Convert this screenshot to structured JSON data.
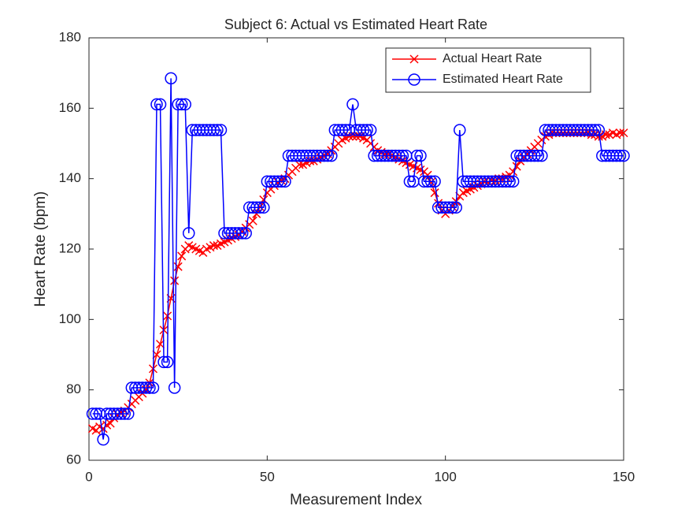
{
  "chart_data": {
    "type": "line",
    "title": "Subject 6: Actual vs Estimated Heart Rate",
    "xlabel": "Measurement Index",
    "ylabel": "Heart Rate (bpm)",
    "xlim": [
      0,
      150
    ],
    "xticks": [
      0,
      50,
      100,
      150
    ],
    "ylim": [
      60,
      180
    ],
    "yticks": [
      60,
      80,
      100,
      120,
      140,
      160,
      180
    ],
    "legend": "upper right",
    "x": [
      1,
      2,
      3,
      4,
      5,
      6,
      7,
      8,
      9,
      10,
      11,
      12,
      13,
      14,
      15,
      16,
      17,
      18,
      19,
      20,
      21,
      22,
      23,
      24,
      25,
      26,
      27,
      28,
      29,
      30,
      31,
      32,
      33,
      34,
      35,
      36,
      37,
      38,
      39,
      40,
      41,
      42,
      43,
      44,
      45,
      46,
      47,
      48,
      49,
      50,
      51,
      52,
      53,
      54,
      55,
      56,
      57,
      58,
      59,
      60,
      61,
      62,
      63,
      64,
      65,
      66,
      67,
      68,
      69,
      70,
      71,
      72,
      73,
      74,
      75,
      76,
      77,
      78,
      79,
      80,
      81,
      82,
      83,
      84,
      85,
      86,
      87,
      88,
      89,
      90,
      91,
      92,
      93,
      94,
      95,
      96,
      97,
      98,
      99,
      100,
      101,
      102,
      103,
      104,
      105,
      106,
      107,
      108,
      109,
      110,
      111,
      112,
      113,
      114,
      115,
      116,
      117,
      118,
      119,
      120,
      121,
      122,
      123,
      124,
      125,
      126,
      127,
      128,
      129,
      130,
      131,
      132,
      133,
      134,
      135,
      136,
      137,
      138,
      139,
      140,
      141,
      142,
      143,
      144,
      145,
      146,
      147,
      148,
      149,
      150
    ],
    "series": [
      {
        "name": "Actual Heart Rate",
        "color": "#ff0000",
        "marker": "x",
        "values": [
          69,
          68.5,
          69.5,
          69,
          70,
          70.5,
          72,
          73,
          73.5,
          74,
          75,
          76,
          77,
          78,
          79,
          80,
          82,
          86,
          90,
          93,
          97,
          101,
          106,
          111,
          115,
          118,
          120,
          121,
          120.5,
          120,
          119.5,
          119,
          120,
          120.5,
          121,
          121,
          121.5,
          122,
          122.5,
          123,
          123.5,
          124,
          125,
          126,
          127,
          128,
          130,
          132,
          134,
          136,
          137,
          138,
          139,
          139.5,
          140,
          141,
          142,
          143,
          144,
          144,
          144.5,
          145,
          145,
          145.5,
          146,
          146.5,
          147,
          148,
          149,
          150,
          151,
          151.5,
          152,
          152,
          152,
          152,
          151.5,
          151,
          150,
          149,
          148,
          147.5,
          147,
          147,
          146.5,
          146,
          145.5,
          145,
          144.5,
          144,
          143.5,
          143,
          142.5,
          142,
          141,
          139,
          136,
          133,
          131,
          130,
          131,
          132,
          133.5,
          135,
          136,
          136.5,
          137,
          137.5,
          138,
          138.5,
          139,
          139,
          139.5,
          139.5,
          140,
          140,
          140.5,
          141,
          142,
          143.5,
          145,
          146,
          147,
          148,
          149,
          150,
          151,
          152,
          152.5,
          153,
          153,
          153,
          153,
          153,
          153,
          153,
          153,
          153,
          153,
          153,
          152.5,
          152.5,
          152,
          152,
          152.5,
          152.5,
          153,
          152.5,
          153,
          153
        ]
      },
      {
        "name": "Estimated Heart Rate",
        "color": "#0000ff",
        "marker": "o",
        "values": [
          73.2,
          73.2,
          73.2,
          65.9,
          73.2,
          73.2,
          73.2,
          73.2,
          73.2,
          73.2,
          73.2,
          80.6,
          80.6,
          80.6,
          80.6,
          80.6,
          80.6,
          80.6,
          161.1,
          161.1,
          87.9,
          87.9,
          168.5,
          80.6,
          161.1,
          161.1,
          161.1,
          124.5,
          153.8,
          153.8,
          153.8,
          153.8,
          153.8,
          153.8,
          153.8,
          153.8,
          153.8,
          124.5,
          124.5,
          124.5,
          124.5,
          124.5,
          124.5,
          124.5,
          131.8,
          131.8,
          131.8,
          131.8,
          131.8,
          139.2,
          139.2,
          139.2,
          139.2,
          139.2,
          139.2,
          146.5,
          146.5,
          146.5,
          146.5,
          146.5,
          146.5,
          146.5,
          146.5,
          146.5,
          146.5,
          146.5,
          146.5,
          146.5,
          153.8,
          153.8,
          153.8,
          153.8,
          153.8,
          161.1,
          153.8,
          153.8,
          153.8,
          153.8,
          153.8,
          146.5,
          146.5,
          146.5,
          146.5,
          146.5,
          146.5,
          146.5,
          146.5,
          146.5,
          146.5,
          139.2,
          139.2,
          146.5,
          146.5,
          139.2,
          139.2,
          139.2,
          139.2,
          131.8,
          131.8,
          131.8,
          131.8,
          131.8,
          131.8,
          153.8,
          139.2,
          139.2,
          139.2,
          139.2,
          139.2,
          139.2,
          139.2,
          139.2,
          139.2,
          139.2,
          139.2,
          139.2,
          139.2,
          139.2,
          139.2,
          146.5,
          146.5,
          146.5,
          146.5,
          146.5,
          146.5,
          146.5,
          146.5,
          153.8,
          153.8,
          153.8,
          153.8,
          153.8,
          153.8,
          153.8,
          153.8,
          153.8,
          153.8,
          153.8,
          153.8,
          153.8,
          153.8,
          153.8,
          153.8,
          146.5,
          146.5,
          146.5,
          146.5,
          146.5,
          146.5,
          146.5
        ]
      }
    ]
  }
}
